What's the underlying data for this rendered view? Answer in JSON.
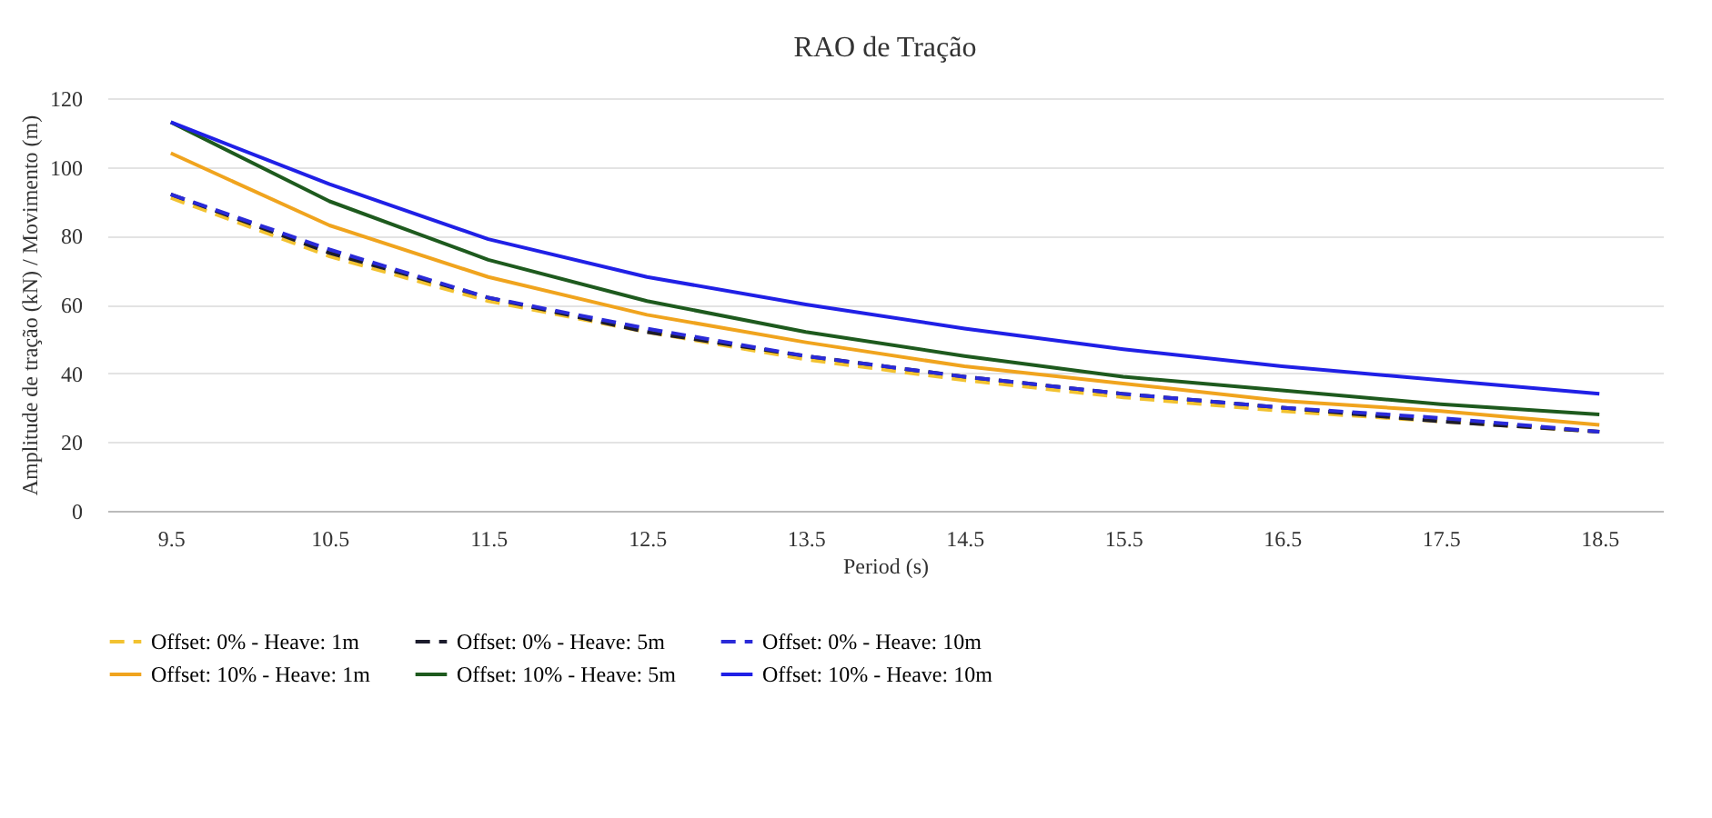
{
  "chart_data": {
    "type": "line",
    "title": "RAO de Tração",
    "xlabel": "Period (s)",
    "ylabel": "Amplitude de tração (kN) / Movimento (m)",
    "categories": [
      "9.5",
      "10.5",
      "11.5",
      "12.5",
      "13.5",
      "14.5",
      "15.5",
      "16.5",
      "17.5",
      "18.5"
    ],
    "ylim": [
      0,
      120
    ],
    "yticks": [
      0,
      20,
      40,
      60,
      80,
      100,
      120
    ],
    "grid": "y",
    "legend": "bottom",
    "series": [
      {
        "name": "Offset: 0% - Heave: 1m",
        "color": "#f2c230",
        "line_style": "dashed",
        "values": [
          91,
          74,
          61,
          52,
          44,
          38,
          33,
          29,
          26,
          23
        ]
      },
      {
        "name": "Offset: 0% - Heave: 5m",
        "color": "#1c1c2c",
        "line_style": "dashed",
        "values": [
          92,
          75,
          62,
          52,
          45,
          39,
          34,
          30,
          26,
          23
        ]
      },
      {
        "name": "Offset: 0% - Heave: 10m",
        "color": "#2a2ad8",
        "line_style": "dashed",
        "values": [
          92,
          76,
          62,
          53,
          45,
          39,
          34,
          30,
          27,
          23
        ]
      },
      {
        "name": "Offset: 10% - Heave: 1m",
        "color": "#f0a41e",
        "line_style": "solid",
        "values": [
          104,
          83,
          68,
          57,
          49,
          42,
          37,
          32,
          29,
          25
        ]
      },
      {
        "name": "Offset: 10% - Heave: 5m",
        "color": "#1e5a1e",
        "line_style": "solid",
        "values": [
          113,
          90,
          73,
          61,
          52,
          45,
          39,
          35,
          31,
          28
        ]
      },
      {
        "name": "Offset: 10% - Heave: 10m",
        "color": "#2020e6",
        "line_style": "solid",
        "values": [
          113,
          95,
          79,
          68,
          60,
          53,
          47,
          42,
          38,
          34
        ]
      }
    ]
  }
}
